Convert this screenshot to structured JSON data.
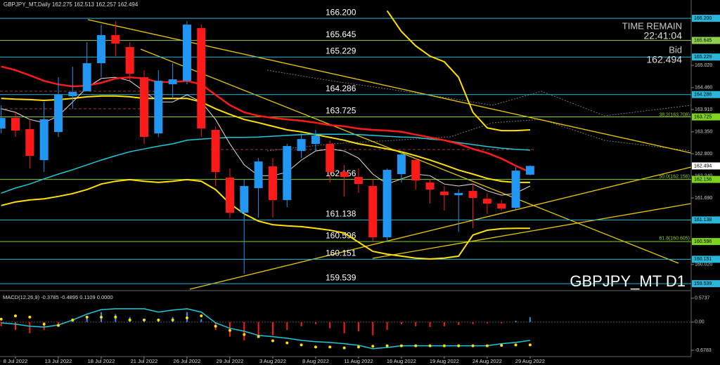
{
  "chart_data": [
    {
      "type": "candlestick",
      "title": "GBPJPY_MT,Daily",
      "watermark": "GBPJPY_MT D1",
      "time_label": "TIME REMAIN",
      "time": "22:41:04",
      "bid_label": "Bid",
      "bid": 162.494,
      "categories": [
        null,
        "8 Jul 2022",
        null,
        null,
        "13 Jul 2022",
        null,
        null,
        "18 Jul 2022",
        null,
        null,
        "21 Jul 2022",
        null,
        null,
        "26 Jul 2022",
        null,
        null,
        "29 Jul 2022",
        null,
        null,
        "3 Aug 2022",
        null,
        null,
        "8 Aug 2022",
        null,
        null,
        "11 Aug 2022",
        null,
        null,
        "16 Aug 2022",
        null,
        null,
        "19 Aug 2022",
        null,
        null,
        "24 Aug 2022",
        null,
        null,
        "29 Aug 2022"
      ],
      "open": [
        163.434,
        163.699,
        163.417,
        162.641,
        163.346,
        164.245,
        164.368,
        165.073,
        165.778,
        165.478,
        164.721,
        163.311,
        164.544,
        164.633,
        165.954,
        163.399,
        162.201,
        161.32,
        161.937,
        162.483,
        161.637,
        162.87,
        163.047,
        163.047,
        162.342,
        162.219,
        161.99,
        160.703,
        162.289,
        162.641,
        162.078,
        161.849,
        161.76,
        161.866,
        161.672,
        161.549,
        161.443,
        162.275
      ],
      "high": [
        164.016,
        163.84,
        163.664,
        164.104,
        164.721,
        164.985,
        165.601,
        166.042,
        166.13,
        165.601,
        164.897,
        164.897,
        165.073,
        166.13,
        166.042,
        163.487,
        162.43,
        162.166,
        162.694,
        162.694,
        163.047,
        163.311,
        163.399,
        163.135,
        162.518,
        162.43,
        162.166,
        162.43,
        162.87,
        162.694,
        162.166,
        161.99,
        161.901,
        162.042,
        161.813,
        161.637,
        162.466,
        162.513
      ],
      "low": [
        163.311,
        163.223,
        162.43,
        162.342,
        163.223,
        163.928,
        164.368,
        164.721,
        165.249,
        164.633,
        163.047,
        163.223,
        164.192,
        164.544,
        163.223,
        161.99,
        161.197,
        159.788,
        161.197,
        161.197,
        161.461,
        162.694,
        162.87,
        162.078,
        161.725,
        161.813,
        160.58,
        160.58,
        162.078,
        161.901,
        161.549,
        161.373,
        160.844,
        160.932,
        161.285,
        161.373,
        161.373,
        162.257
      ],
      "close": [
        163.699,
        163.382,
        162.747,
        163.664,
        164.28,
        164.351,
        165.073,
        165.778,
        165.566,
        164.809,
        163.223,
        164.633,
        164.668,
        166.042,
        163.434,
        162.342,
        161.32,
        161.99,
        162.606,
        161.637,
        162.994,
        163.17,
        163.258,
        162.342,
        162.219,
        162.042,
        160.703,
        162.395,
        162.783,
        162.13,
        161.901,
        161.76,
        161.813,
        161.69,
        161.549,
        161.426,
        162.377,
        162.494
      ],
      "up_color": "#2196f3",
      "down_color": "#ff1a1a",
      "series": [
        {
          "color": "#ffe000",
          "width": 2,
          "values": [
            null,
            null,
            null,
            null,
            null,
            null,
            null,
            null,
            null,
            null,
            null,
            null,
            null,
            null,
            null,
            null,
            null,
            null,
            null,
            null,
            null,
            null,
            null,
            null,
            null,
            null,
            null,
            166.39,
            165.87,
            165.51,
            165.25,
            165.11,
            164.72,
            163.84,
            163.45,
            163.38,
            163.38,
            163.4
          ]
        },
        {
          "color": "#ffe000",
          "width": 2,
          "values": [
            164.19,
            164.17,
            164.16,
            164.14,
            164.16,
            164.19,
            164.23,
            164.25,
            164.25,
            164.23,
            164.19,
            164.19,
            164.19,
            164.19,
            164.1,
            163.93,
            163.79,
            163.66,
            163.58,
            163.49,
            163.4,
            163.35,
            163.28,
            163.21,
            163.14,
            163.05,
            162.99,
            162.92,
            162.85,
            162.75,
            162.64,
            162.52,
            162.39,
            162.29,
            162.18,
            162.11,
            162.08,
            162.08
          ]
        },
        {
          "color": "#ffe000",
          "width": 2,
          "values": [
            161.5,
            161.59,
            161.64,
            161.67,
            161.73,
            161.8,
            161.9,
            162.04,
            162.11,
            162.15,
            162.11,
            162.08,
            162.11,
            162.15,
            162.11,
            161.9,
            161.55,
            161.29,
            161.11,
            161.02,
            160.99,
            160.97,
            160.93,
            160.88,
            160.81,
            160.58,
            160.35,
            160.28,
            160.23,
            160.18,
            160.16,
            160.18,
            160.23,
            160.76,
            160.88,
            160.92,
            160.93,
            160.93
          ]
        },
        {
          "color": "#20c8d8",
          "width": 1.5,
          "values": [
            161.81,
            161.94,
            162.04,
            162.17,
            162.29,
            162.4,
            162.52,
            162.64,
            162.75,
            162.85,
            162.92,
            162.99,
            163.05,
            163.14,
            163.17,
            163.19,
            163.21,
            163.21,
            163.22,
            163.24,
            163.26,
            163.28,
            163.29,
            163.29,
            163.29,
            163.28,
            163.26,
            163.24,
            163.22,
            163.21,
            163.17,
            163.14,
            163.08,
            163.03,
            162.98,
            162.94,
            162.91,
            162.89
          ]
        },
        {
          "color": "#f0dcdc",
          "width": 1,
          "values": [
            163.93,
            163.84,
            163.66,
            163.58,
            163.75,
            164.1,
            164.46,
            164.69,
            164.72,
            164.63,
            164.37,
            164.1,
            164.1,
            164.28,
            164.1,
            163.66,
            163.05,
            162.52,
            162.25,
            162.25,
            162.34,
            162.64,
            162.87,
            162.92,
            162.87,
            162.69,
            162.29,
            162.04,
            162.17,
            162.29,
            162.25,
            162.04,
            161.99,
            162.04,
            161.87,
            161.76,
            161.81,
            161.99
          ]
        },
        {
          "color": "#ff1a1a",
          "width": 2.5,
          "values": [
            164.99,
            164.9,
            164.77,
            164.63,
            164.54,
            164.49,
            164.51,
            164.58,
            164.69,
            164.72,
            164.69,
            164.6,
            164.6,
            164.63,
            164.54,
            164.28,
            164.02,
            163.84,
            163.75,
            163.7,
            163.66,
            163.63,
            163.58,
            163.52,
            163.49,
            163.43,
            163.4,
            163.38,
            163.35,
            163.28,
            163.21,
            163.14,
            163.05,
            162.92,
            162.82,
            162.68,
            162.5,
            162.34
          ]
        }
      ],
      "levels": [
        {
          "value": 166.2,
          "label": "166.200",
          "color": "#29b6d8"
        },
        {
          "value": 165.645,
          "color": "#8fd14f"
        },
        {
          "value": 165.229,
          "color": "#29b6d8"
        },
        {
          "value": 164.286,
          "color": "#29b6d8"
        },
        {
          "value": 163.725,
          "color": "#7ed321"
        },
        {
          "value": 162.156,
          "color": "#7ed321"
        },
        {
          "value": 161.138,
          "color": "#29b6d8"
        },
        {
          "value": 160.596,
          "color": "#7ed321"
        },
        {
          "value": 160.151,
          "color": "#29b6d8"
        },
        {
          "value": 159.539,
          "color": "#29b6d8"
        }
      ],
      "annotations": [
        {
          "text": "38.2(163.708)",
          "value": 163.708
        },
        {
          "text": "50.0(162.156)",
          "value": 162.156
        },
        {
          "text": "61.8(160.605)",
          "value": 160.605
        }
      ],
      "ylim": [
        159.4,
        166.66
      ],
      "yticks": [
        {
          "value": 165.02,
          "label": "165.020"
        },
        {
          "value": 164.46,
          "label": "164.460"
        },
        {
          "value": 163.91,
          "label": "163.910"
        },
        {
          "value": 163.35,
          "label": "163.350"
        },
        {
          "value": 162.8,
          "label": "162.800"
        },
        {
          "value": 162.24,
          "label": "162.240"
        },
        {
          "value": 161.69,
          "label": "161.690"
        },
        {
          "value": 160.02,
          "label": "160.020"
        }
      ]
    },
    {
      "type": "macd",
      "title": "MACD(12,26,9) -0.3785 -0.4895 0.1109 0.0000",
      "histogram": [
        -0.1,
        -0.19,
        -0.27,
        -0.19,
        -0.05,
        0.02,
        0.12,
        0.24,
        0.19,
        0.12,
        0.02,
        0.07,
        0.12,
        0.24,
        0.07,
        -0.19,
        -0.35,
        -0.44,
        -0.35,
        -0.32,
        -0.19,
        -0.1,
        -0.05,
        -0.15,
        -0.27,
        -0.22,
        -0.32,
        -0.19,
        -0.05,
        -0.1,
        -0.12,
        -0.1,
        -0.07,
        -0.05,
        -0.03,
        -0.03,
        0.03,
        0.12
      ],
      "up_color": "#2196f3",
      "down_color": "#ff1a1a",
      "signal": {
        "color": "#20c8d8",
        "values": [
          -0.02,
          -0.05,
          -0.1,
          -0.12,
          -0.07,
          0.05,
          0.19,
          0.3,
          0.32,
          0.32,
          0.32,
          0.24,
          0.29,
          0.32,
          0.24,
          -0.02,
          -0.15,
          -0.22,
          -0.32,
          -0.35,
          -0.39,
          -0.44,
          -0.47,
          -0.49,
          -0.52,
          -0.56,
          -0.64,
          -0.61,
          -0.57,
          -0.57,
          -0.57,
          -0.57,
          -0.57,
          -0.57,
          -0.57,
          -0.52,
          -0.49,
          -0.44
        ]
      },
      "dots": {
        "color": "#ffe000",
        "values": [
          0.07,
          0.15,
          0.12,
          -0.05,
          -0.08,
          0.05,
          0.12,
          0.12,
          0.12,
          0.05,
          0.05,
          0.05,
          0.05,
          0.1,
          0.15,
          -0.1,
          -0.2,
          -0.3,
          -0.35,
          -0.45,
          -0.5,
          -0.55,
          -0.6,
          -0.6,
          -0.62,
          -0.6,
          -0.58,
          -0.57,
          -0.57,
          -0.57,
          -0.57,
          -0.57,
          -0.57,
          -0.57,
          -0.57,
          -0.56,
          -0.55,
          -0.55
        ]
      },
      "ylim": [
        -0.83,
        0.69
      ],
      "yticks": [
        0.5737,
        {
          "value": 0,
          "label": "0.00"
        },
        -0.6783
      ]
    }
  ]
}
